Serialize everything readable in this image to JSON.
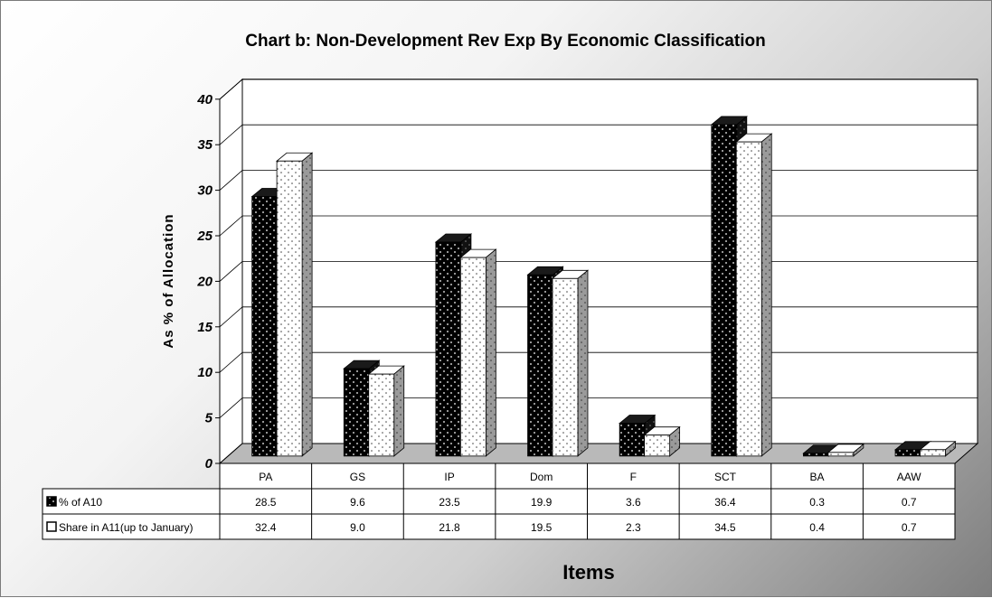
{
  "chart_data": {
    "type": "bar",
    "title": "Chart b: Non-Development Rev Exp By Economic Classification",
    "xlabel": "Items",
    "ylabel": "As % of Allocation",
    "ylim": [
      0,
      40
    ],
    "yticks": [
      0,
      5,
      10,
      15,
      20,
      25,
      30,
      35,
      40
    ],
    "grid": true,
    "style": "3d-clustered-column-with-data-table",
    "categories": [
      "PA",
      "GS",
      "IP",
      "Dom",
      "F",
      "SCT",
      "BA",
      "AAW"
    ],
    "series": [
      {
        "name": "% of A10",
        "values": [
          28.5,
          9.6,
          23.5,
          19.9,
          3.6,
          36.4,
          0.3,
          0.7
        ],
        "labels": [
          "28.5",
          "9.6",
          "23.5",
          "19.9",
          "3.6",
          "36.4",
          "0.3",
          "0.7"
        ],
        "color": "#000000",
        "pattern": "white-dots-on-black"
      },
      {
        "name": "Share in A11(up to January)",
        "values": [
          32.4,
          9.0,
          21.8,
          19.5,
          2.3,
          34.5,
          0.4,
          0.7
        ],
        "labels": [
          "32.4",
          "9.0",
          "21.8",
          "19.5",
          "2.3",
          "34.5",
          "0.4",
          "0.7"
        ],
        "color": "#ffffff",
        "pattern": "black-dots-on-white"
      }
    ]
  }
}
